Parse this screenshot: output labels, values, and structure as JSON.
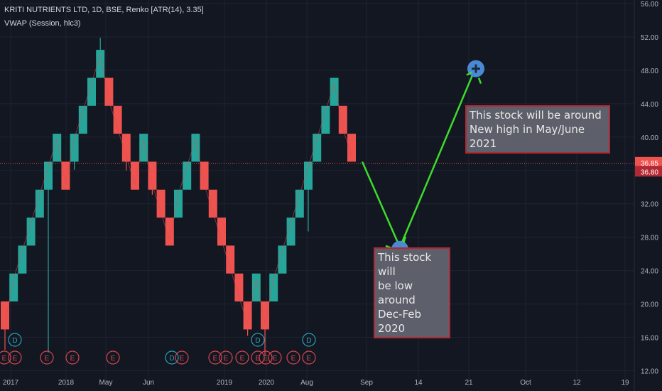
{
  "header": {
    "title": "KRITI NUTRIENTS LTD, 1D, BSE, Renko [ATR(14), 3.35]",
    "indicator": "VWAP (Session, hlc3)"
  },
  "annotations": {
    "low_note": [
      "This stock will",
      "be low around",
      "Dec-Feb 2020"
    ],
    "high_note": [
      "This stock will be around",
      "New high in May/June 2021"
    ]
  },
  "price_labels": {
    "last": "36.85",
    "vwap": "36.80"
  },
  "colors": {
    "background": "#131722",
    "up": "#26a69a",
    "down": "#ef5350",
    "projection": "#3ddc2a",
    "marker": "#4a8ad4",
    "event": "#d9484f",
    "dividend": "#2aa3b5"
  },
  "chart_data": {
    "type": "renko",
    "ylim": [
      10,
      56
    ],
    "y_ticks": [
      "12.00",
      "16.00",
      "20.00",
      "24.00",
      "28.00",
      "32.00",
      "36.00",
      "40.00",
      "44.00",
      "48.00",
      "52.00",
      "56.00"
    ],
    "x_ticks": [
      "2017",
      "2018",
      "May",
      "Jun",
      "2019",
      "2020",
      "Aug",
      "Sep",
      "14",
      "21",
      "Oct",
      "12",
      "19"
    ],
    "brick_size": 3.35,
    "bricks": [
      {
        "dir": "down",
        "low": 16.95,
        "high": 20.3
      },
      {
        "dir": "up",
        "low": 20.3,
        "high": 23.65
      },
      {
        "dir": "up",
        "low": 23.65,
        "high": 27.0
      },
      {
        "dir": "up",
        "low": 27.0,
        "high": 30.35
      },
      {
        "dir": "up",
        "low": 30.35,
        "high": 33.7
      },
      {
        "dir": "up",
        "low": 33.7,
        "high": 37.05
      },
      {
        "dir": "up",
        "low": 37.05,
        "high": 40.4
      },
      {
        "dir": "down",
        "low": 33.7,
        "high": 37.05
      },
      {
        "dir": "up",
        "low": 37.05,
        "high": 40.4
      },
      {
        "dir": "up",
        "low": 40.4,
        "high": 43.75
      },
      {
        "dir": "up",
        "low": 43.75,
        "high": 47.1
      },
      {
        "dir": "up",
        "low": 47.1,
        "high": 50.45
      },
      {
        "dir": "down",
        "low": 43.75,
        "high": 47.1
      },
      {
        "dir": "down",
        "low": 40.4,
        "high": 43.75
      },
      {
        "dir": "down",
        "low": 37.05,
        "high": 40.4
      },
      {
        "dir": "down",
        "low": 33.7,
        "high": 37.05
      },
      {
        "dir": "up",
        "low": 37.05,
        "high": 40.4
      },
      {
        "dir": "down",
        "low": 33.7,
        "high": 37.05
      },
      {
        "dir": "down",
        "low": 30.35,
        "high": 33.7
      },
      {
        "dir": "down",
        "low": 27.0,
        "high": 30.35
      },
      {
        "dir": "up",
        "low": 30.35,
        "high": 33.7
      },
      {
        "dir": "up",
        "low": 33.7,
        "high": 37.05
      },
      {
        "dir": "up",
        "low": 37.05,
        "high": 40.4
      },
      {
        "dir": "down",
        "low": 33.7,
        "high": 37.05
      },
      {
        "dir": "down",
        "low": 30.35,
        "high": 33.7
      },
      {
        "dir": "down",
        "low": 27.0,
        "high": 30.35
      },
      {
        "dir": "down",
        "low": 23.65,
        "high": 27.0
      },
      {
        "dir": "down",
        "low": 20.3,
        "high": 23.65
      },
      {
        "dir": "down",
        "low": 16.95,
        "high": 20.3
      },
      {
        "dir": "up",
        "low": 20.3,
        "high": 23.65
      },
      {
        "dir": "down",
        "low": 16.95,
        "high": 20.3
      },
      {
        "dir": "up",
        "low": 20.3,
        "high": 23.65
      },
      {
        "dir": "up",
        "low": 23.65,
        "high": 27.0
      },
      {
        "dir": "up",
        "low": 27.0,
        "high": 30.35
      },
      {
        "dir": "up",
        "low": 30.35,
        "high": 33.7
      },
      {
        "dir": "up",
        "low": 33.7,
        "high": 37.05
      },
      {
        "dir": "up",
        "low": 37.05,
        "high": 40.4
      },
      {
        "dir": "up",
        "low": 40.4,
        "high": 43.75
      },
      {
        "dir": "up",
        "low": 43.75,
        "high": 47.1
      },
      {
        "dir": "down",
        "low": 40.4,
        "high": 43.75
      },
      {
        "dir": "down",
        "low": 37.05,
        "high": 40.4
      }
    ],
    "projection": [
      [
        37.05,
        26.8
      ],
      [
        26.8,
        48.2
      ]
    ],
    "events": [
      "E",
      "E",
      "E",
      "E",
      "E",
      "D",
      "E",
      "E",
      "E",
      "E",
      "E",
      "E",
      "E",
      "E",
      "E"
    ],
    "dividends": [
      "D",
      "D",
      "D"
    ]
  }
}
